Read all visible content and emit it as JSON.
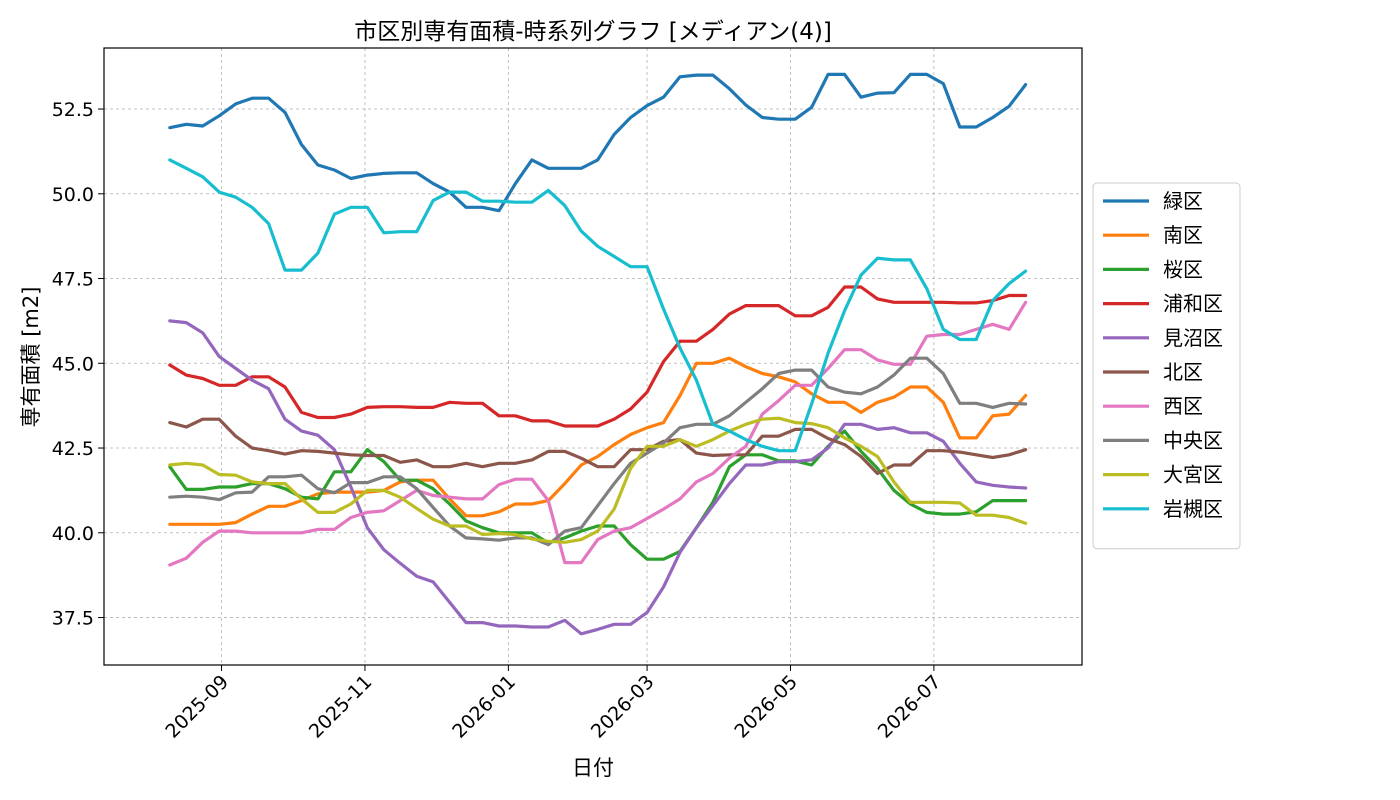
{
  "chart_data": {
    "type": "line",
    "title": "市区別専有面積-時系列グラフ [メディアン(4)]",
    "xlabel": "日付",
    "ylabel": "専有面積 [m2]",
    "x_range": [
      "2025-07-13",
      "2026-09-02"
    ],
    "ylim": [
      36.1,
      54.3
    ],
    "y_ticks": [
      37.5,
      40.0,
      42.5,
      45.0,
      47.5,
      50.0,
      52.5
    ],
    "x_ticks": [
      {
        "date": "2025-09-01",
        "label": "2025-09"
      },
      {
        "date": "2025-11-01",
        "label": "2025-11"
      },
      {
        "date": "2026-01-01",
        "label": "2026-01"
      },
      {
        "date": "2026-03-01",
        "label": "2026-03"
      },
      {
        "date": "2026-05-01",
        "label": "2026-05"
      },
      {
        "date": "2026-07-01",
        "label": "2026-07"
      }
    ],
    "grid": true,
    "legend_position": "right",
    "x": [
      "2025-08-10",
      "2025-08-17",
      "2025-08-24",
      "2025-08-31",
      "2025-09-07",
      "2025-09-14",
      "2025-09-21",
      "2025-09-28",
      "2025-10-05",
      "2025-10-12",
      "2025-10-19",
      "2025-10-26",
      "2025-11-02",
      "2025-11-09",
      "2025-11-16",
      "2025-11-23",
      "2025-11-30",
      "2025-12-07",
      "2025-12-14",
      "2025-12-21",
      "2025-12-28",
      "2026-01-04",
      "2026-01-11",
      "2026-01-18",
      "2026-01-25",
      "2026-02-01",
      "2026-02-08",
      "2026-02-15",
      "2026-02-22",
      "2026-03-01",
      "2026-03-08",
      "2026-03-15",
      "2026-03-22",
      "2026-03-29",
      "2026-04-05",
      "2026-04-12",
      "2026-04-19",
      "2026-04-26",
      "2026-05-03",
      "2026-05-10",
      "2026-05-17",
      "2026-05-24",
      "2026-05-31",
      "2026-06-07",
      "2026-06-14",
      "2026-06-21",
      "2026-06-28",
      "2026-07-05",
      "2026-07-12",
      "2026-07-19",
      "2026-07-26",
      "2026-08-02",
      "2026-08-09"
    ],
    "series": [
      {
        "name": "緑区",
        "color": "#1f77b4",
        "values": [
          51.95,
          52.05,
          52.0,
          52.3,
          52.65,
          52.82,
          52.82,
          52.4,
          51.45,
          50.85,
          50.7,
          50.45,
          50.55,
          50.6,
          50.62,
          50.62,
          50.3,
          50.05,
          49.6,
          49.6,
          49.5,
          50.3,
          51.0,
          50.75,
          50.75,
          50.75,
          51.0,
          51.75,
          52.25,
          52.6,
          52.85,
          53.45,
          53.5,
          53.5,
          53.1,
          52.62,
          52.25,
          52.2,
          52.2,
          52.55,
          53.52,
          53.52,
          52.85,
          52.97,
          52.98,
          53.52,
          53.52,
          53.25,
          51.97,
          51.97,
          52.25,
          52.58,
          53.22
        ]
      },
      {
        "name": "南区",
        "color": "#ff7f0e",
        "values": [
          40.25,
          40.25,
          40.25,
          40.25,
          40.3,
          40.55,
          40.78,
          40.78,
          40.95,
          41.15,
          41.2,
          41.2,
          41.2,
          41.25,
          41.5,
          41.55,
          41.55,
          41.0,
          40.5,
          40.5,
          40.62,
          40.85,
          40.85,
          40.95,
          41.45,
          42.0,
          42.25,
          42.6,
          42.9,
          43.1,
          43.25,
          44.05,
          45.0,
          45.0,
          45.15,
          44.9,
          44.7,
          44.6,
          44.45,
          44.1,
          43.85,
          43.85,
          43.55,
          43.85,
          44.0,
          44.3,
          44.3,
          43.85,
          42.8,
          42.8,
          43.45,
          43.5,
          44.05
        ]
      },
      {
        "name": "桜区",
        "color": "#2ca02c",
        "values": [
          41.95,
          41.28,
          41.28,
          41.35,
          41.35,
          41.45,
          41.45,
          41.3,
          41.05,
          41.0,
          41.8,
          41.8,
          42.45,
          42.1,
          41.55,
          41.55,
          41.3,
          40.85,
          40.35,
          40.15,
          40.0,
          40.0,
          40.0,
          39.7,
          39.85,
          40.05,
          40.2,
          40.2,
          39.65,
          39.22,
          39.22,
          39.45,
          40.15,
          40.9,
          41.95,
          42.3,
          42.3,
          42.12,
          42.12,
          42.0,
          42.55,
          43.0,
          42.4,
          41.9,
          41.25,
          40.85,
          40.6,
          40.55,
          40.55,
          40.62,
          40.95,
          40.95,
          40.95
        ]
      },
      {
        "name": "浦和区",
        "color": "#d62728",
        "values": [
          44.95,
          44.65,
          44.55,
          44.35,
          44.35,
          44.6,
          44.6,
          44.3,
          43.55,
          43.4,
          43.4,
          43.5,
          43.7,
          43.72,
          43.72,
          43.7,
          43.7,
          43.85,
          43.82,
          43.82,
          43.45,
          43.45,
          43.3,
          43.3,
          43.15,
          43.15,
          43.15,
          43.35,
          43.65,
          44.15,
          45.05,
          45.65,
          45.65,
          46.0,
          46.45,
          46.7,
          46.7,
          46.7,
          46.4,
          46.4,
          46.65,
          47.25,
          47.25,
          46.9,
          46.8,
          46.8,
          46.8,
          46.8,
          46.78,
          46.78,
          46.85,
          47.0,
          47.0
        ]
      },
      {
        "name": "見沼区",
        "color": "#9467bd",
        "values": [
          46.25,
          46.2,
          45.9,
          45.2,
          44.85,
          44.5,
          44.25,
          43.35,
          43.0,
          42.88,
          42.45,
          41.35,
          40.15,
          39.5,
          39.1,
          38.72,
          38.55,
          37.95,
          37.35,
          37.35,
          37.25,
          37.25,
          37.22,
          37.22,
          37.42,
          37.02,
          37.15,
          37.3,
          37.3,
          37.65,
          38.4,
          39.42,
          40.15,
          40.8,
          41.45,
          42.0,
          42.0,
          42.1,
          42.1,
          42.15,
          42.5,
          43.2,
          43.2,
          43.05,
          43.1,
          42.95,
          42.95,
          42.7,
          42.05,
          41.5,
          41.4,
          41.35,
          41.32
        ]
      },
      {
        "name": "北区",
        "color": "#8c564b",
        "values": [
          43.25,
          43.12,
          43.35,
          43.35,
          42.85,
          42.5,
          42.42,
          42.32,
          42.42,
          42.4,
          42.35,
          42.3,
          42.28,
          42.28,
          42.08,
          42.15,
          41.95,
          41.95,
          42.05,
          41.95,
          42.05,
          42.05,
          42.15,
          42.4,
          42.4,
          42.2,
          41.95,
          41.95,
          42.45,
          42.45,
          42.7,
          42.75,
          42.35,
          42.28,
          42.3,
          42.3,
          42.85,
          42.85,
          43.05,
          43.05,
          42.78,
          42.6,
          42.25,
          41.75,
          42.0,
          42.0,
          42.42,
          42.42,
          42.38,
          42.3,
          42.22,
          42.3,
          42.45
        ]
      },
      {
        "name": "西区",
        "color": "#e377c2",
        "values": [
          39.05,
          39.25,
          39.72,
          40.05,
          40.05,
          40.0,
          40.0,
          40.0,
          40.0,
          40.1,
          40.1,
          40.45,
          40.6,
          40.65,
          40.95,
          41.25,
          41.1,
          41.05,
          41.0,
          41.0,
          41.42,
          41.58,
          41.58,
          40.95,
          39.12,
          39.12,
          39.8,
          40.05,
          40.15,
          40.42,
          40.7,
          41.0,
          41.5,
          41.75,
          42.2,
          42.55,
          43.5,
          43.9,
          44.35,
          44.35,
          44.85,
          45.4,
          45.4,
          45.1,
          44.97,
          44.97,
          45.8,
          45.85,
          45.85,
          46.0,
          46.15,
          46.0,
          46.8
        ]
      },
      {
        "name": "中央区",
        "color": "#7f7f7f",
        "values": [
          41.05,
          41.08,
          41.05,
          40.98,
          41.18,
          41.2,
          41.65,
          41.65,
          41.7,
          41.3,
          41.18,
          41.48,
          41.48,
          41.65,
          41.65,
          41.3,
          40.75,
          40.2,
          39.85,
          39.82,
          39.78,
          39.85,
          39.85,
          39.65,
          40.05,
          40.15,
          40.8,
          41.45,
          42.05,
          42.35,
          42.65,
          43.1,
          43.2,
          43.2,
          43.45,
          43.85,
          44.25,
          44.7,
          44.8,
          44.8,
          44.3,
          44.15,
          44.1,
          44.3,
          44.65,
          45.15,
          45.15,
          44.7,
          43.82,
          43.82,
          43.7,
          43.82,
          43.8
        ]
      },
      {
        "name": "大宮区",
        "color": "#bcbd22",
        "values": [
          42.0,
          42.05,
          42.0,
          41.72,
          41.7,
          41.5,
          41.45,
          41.45,
          41.0,
          40.6,
          40.6,
          40.85,
          41.25,
          41.25,
          41.05,
          40.72,
          40.4,
          40.2,
          40.2,
          39.95,
          39.98,
          39.95,
          39.82,
          39.75,
          39.72,
          39.8,
          40.05,
          40.7,
          41.9,
          42.55,
          42.55,
          42.75,
          42.55,
          42.75,
          43.0,
          43.2,
          43.35,
          43.38,
          43.25,
          43.22,
          43.1,
          42.8,
          42.55,
          42.25,
          41.5,
          40.9,
          40.9,
          40.9,
          40.88,
          40.52,
          40.52,
          40.45,
          40.28
        ]
      },
      {
        "name": "岩槻区",
        "color": "#17becf",
        "values": [
          51.0,
          50.75,
          50.5,
          50.05,
          49.9,
          49.6,
          49.12,
          47.75,
          47.75,
          48.25,
          49.4,
          49.6,
          49.6,
          48.85,
          48.88,
          48.88,
          49.8,
          50.05,
          50.05,
          49.78,
          49.78,
          49.75,
          49.75,
          50.1,
          49.65,
          48.9,
          48.45,
          48.15,
          47.85,
          47.85,
          46.6,
          45.45,
          44.5,
          43.2,
          43.0,
          42.75,
          42.55,
          42.42,
          42.42,
          43.8,
          45.3,
          46.55,
          47.6,
          48.1,
          48.05,
          48.05,
          47.2,
          46.0,
          45.7,
          45.7,
          46.85,
          47.35,
          47.72
        ]
      }
    ]
  }
}
